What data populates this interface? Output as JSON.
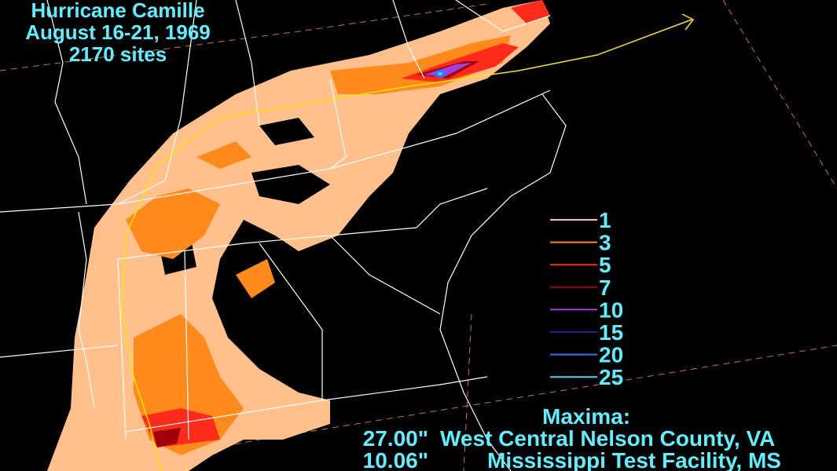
{
  "title": {
    "lines": [
      "Hurricane Camille",
      "August 16-21, 1969",
      "2170 sites"
    ]
  },
  "legend": {
    "items": [
      {
        "value": 1,
        "color": "#ffc08c"
      },
      {
        "value": 3,
        "color": "#ff8a1c"
      },
      {
        "value": 5,
        "color": "#ff2a1a"
      },
      {
        "value": 7,
        "color": "#a0000c"
      },
      {
        "value": 10,
        "color": "#a040e0"
      },
      {
        "value": 15,
        "color": "#1a2a90"
      },
      {
        "value": 20,
        "color": "#3a70ff"
      },
      {
        "value": 25,
        "color": "#40d8ff"
      }
    ]
  },
  "maxima": {
    "heading": "Maxima:",
    "rows": [
      {
        "amount": "27.00\"",
        "location": "West Central Nelson County, VA"
      },
      {
        "amount": "10.06\"",
        "location": "Mississippi Test Facility, MS"
      }
    ]
  }
}
